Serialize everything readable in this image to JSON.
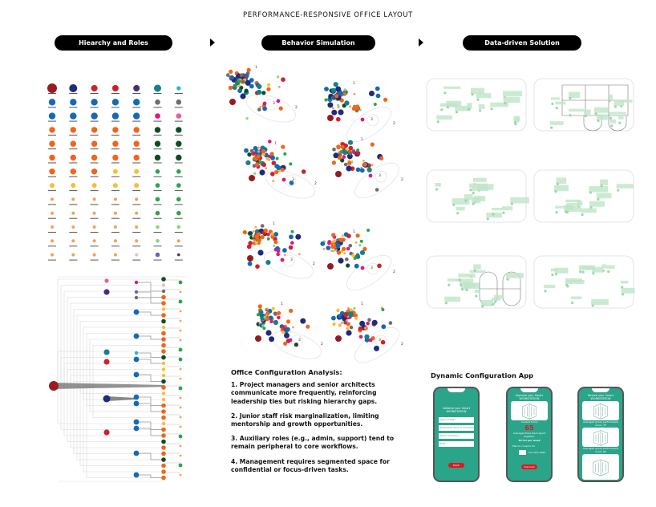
{
  "title": "PERFORMANCE-RESPONSIVE OFFICE LAYOUT",
  "stages": [
    {
      "label": "Hiearchy and Roles"
    },
    {
      "label": "Behavior Simulation"
    },
    {
      "label": "Data-driven Solution"
    }
  ],
  "colors": {
    "darkred": "#9b1b1e",
    "navy": "#1f2c7c",
    "red": "#d0202a",
    "purple": "#4b2889",
    "teal": "#14818a",
    "cyan": "#27b4d3",
    "blue": "#1669b3",
    "gray": "#6d6d6d",
    "magenta": "#e3157d",
    "pink": "#ee5b9e",
    "orange": "#f26419",
    "darkgreen": "#0e4d24",
    "yellow": "#fbbd2d",
    "green": "#2aa64a",
    "lightorange": "#f9a04c",
    "lightgreen": "#8fd07e",
    "lightpink": "#f5b8b8",
    "slateblue": "#6b63b5",
    "darkslate": "#3d3a8c",
    "plan_green": "#bfe5c8",
    "phone_screen": "#2ba58a",
    "button_red": "#e0181f"
  },
  "role_grid": [
    [
      "darkred",
      "navy",
      "red",
      "red",
      "purple",
      "teal",
      "cyan"
    ],
    [
      "blue",
      "blue",
      "blue",
      "blue",
      "blue",
      "gray",
      "gray"
    ],
    [
      "blue",
      "blue",
      "blue",
      "blue",
      "blue",
      "magenta",
      "pink"
    ],
    [
      "orange",
      "orange",
      "orange",
      "orange",
      "orange",
      "darkgreen",
      "darkgreen"
    ],
    [
      "orange",
      "orange",
      "orange",
      "orange",
      "orange",
      "darkgreen",
      "darkgreen"
    ],
    [
      "orange",
      "orange",
      "orange",
      "orange",
      "orange",
      "darkgreen",
      "darkgreen"
    ],
    [
      "orange",
      "orange",
      "orange",
      "yellow",
      "yellow",
      "green",
      "green"
    ],
    [
      "yellow",
      "yellow",
      "yellow",
      "yellow",
      "yellow",
      "green",
      "green"
    ],
    [
      "lightorange",
      "lightorange",
      "lightorange",
      "lightorange",
      "lightorange",
      "green",
      "green"
    ],
    [
      "lightorange",
      "lightorange",
      "lightorange",
      "lightorange",
      "lightorange",
      "green",
      "green"
    ],
    [
      "lightorange",
      "lightorange",
      "lightorange",
      "lightorange",
      "lightorange",
      "lightgreen",
      "lightgreen"
    ],
    [
      "lightorange",
      "lightorange",
      "lightorange",
      "lightorange",
      "lightorange",
      "lightgreen",
      "lightorange"
    ],
    [
      "lightorange",
      "lightorange",
      "lightorange",
      "lightorange",
      "lightpink",
      "slateblue",
      "darkslate"
    ]
  ],
  "tree": {
    "root": "darkred",
    "leaders": [
      "pink",
      "purple",
      "teal",
      "red",
      "navy",
      "red"
    ],
    "managers": [
      "magenta",
      "slateblue",
      "gray",
      "blue",
      "blue",
      "cyan",
      "blue",
      "blue",
      "blue",
      "blue",
      "blue",
      "blue",
      "blue",
      "blue"
    ],
    "staff": [
      "darkgreen",
      "lightpink",
      "gray",
      "orange",
      "orange",
      "yellow",
      "orange",
      "darkgreen",
      "yellow",
      "orange",
      "orange",
      "orange",
      "orange",
      "darkgreen",
      "yellow",
      "yellow",
      "yellow",
      "darkgreen",
      "orange",
      "yellow",
      "yellow",
      "orange",
      "orange",
      "orange",
      "yellow",
      "orange",
      "orange",
      "darkgreen",
      "orange",
      "orange",
      "darkgreen",
      "orange",
      "orange",
      "orange"
    ],
    "juniors": [
      "green",
      "lightorange",
      "green",
      "lightorange",
      "lightorange",
      "lightorange",
      "lightorange",
      "green",
      "green",
      "lightorange",
      "lightorange",
      "green",
      "lightorange",
      "lightorange",
      "lightorange",
      "lightorange",
      "green",
      "lightorange",
      "lightorange",
      "green",
      "lightorange"
    ]
  },
  "simulation": {
    "cluster_labels": [
      "1",
      "2",
      "3",
      "4"
    ]
  },
  "analysis": {
    "heading": "Office Configuration Analysis:",
    "points": [
      "1. Project managers and senior architects communicate more frequently, reinforcing leadership ties but risking hierarchy gaps.",
      "2. Junior staff risk marginalization, limiting mentorship and growth opportunities.",
      "3. Auxiliary roles (e.g., admin, support) tend to remain peripheral to core workflows.",
      "4. Management requires segmented space for confidential or focus-driven tasks."
    ]
  },
  "app": {
    "title": "Dynamic Configuration App",
    "phone1": {
      "heading": "Initialize your Smart WORKSTATION",
      "fields": [
        "Type of task...",
        "Estimated Time of Completion...",
        "Team members...",
        "ESE..."
      ],
      "button": "Start!"
    },
    "phone2": {
      "heading": "Improve your Smart WORKSTATION",
      "score_label": "Current Score",
      "score": "65",
      "time_label": "Averaged time team spent together:",
      "time_value": "10 hrs per week",
      "plan_label": "Plan to co-work for",
      "plan_suffix": "hrs next week",
      "button": "Improve!"
    },
    "phone3": {
      "heading": "Review your Smart WORKSTATION",
      "score1_label": "Averaged group performance score: 75",
      "score2_label": "Averaged group performance score: 85"
    }
  }
}
